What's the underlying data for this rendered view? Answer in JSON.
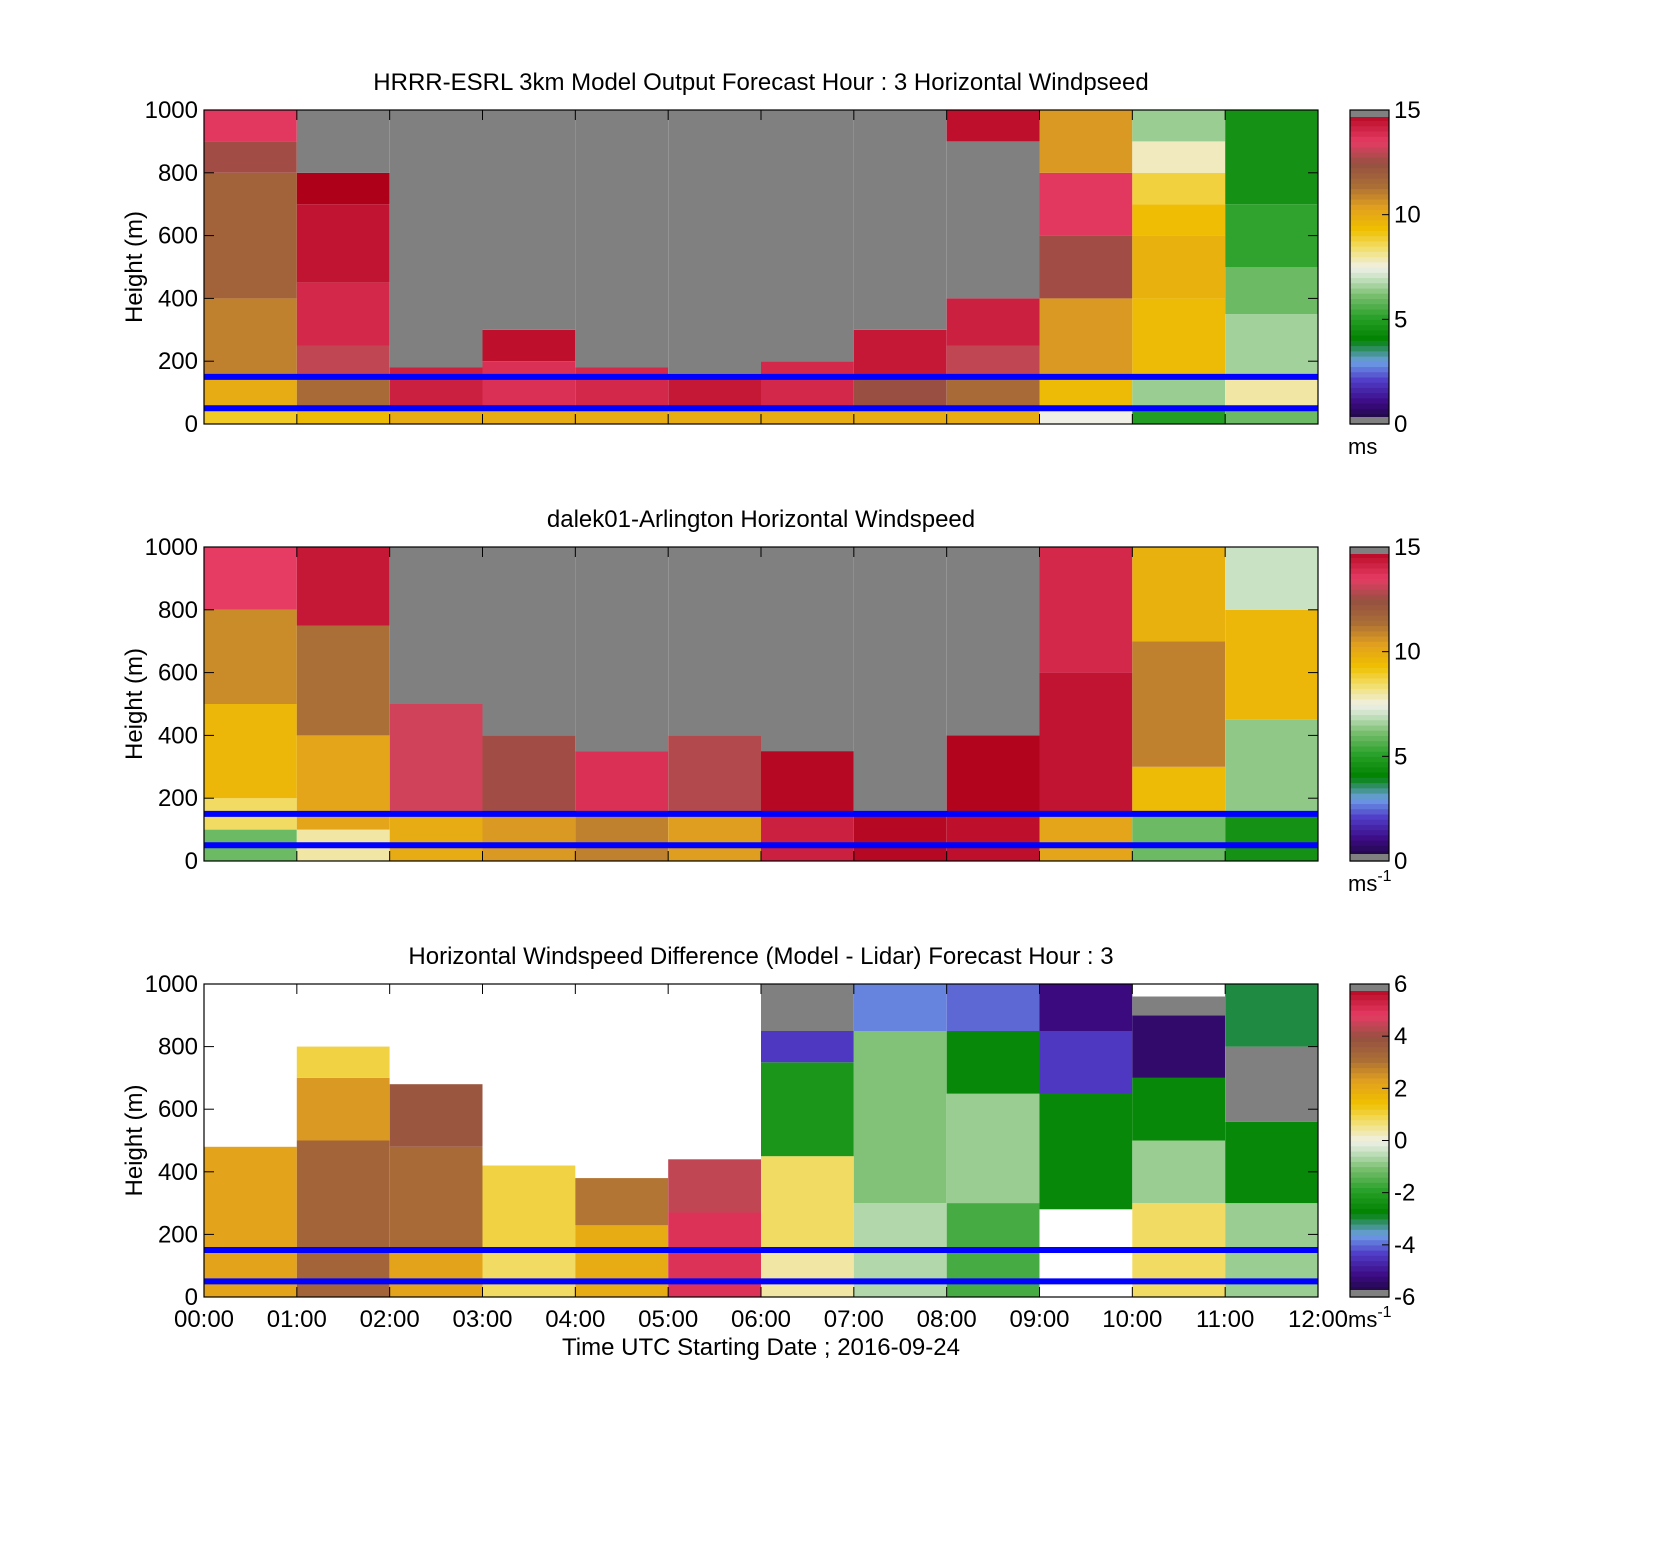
{
  "figure": {
    "xlabel": "Time UTC  Starting Date ; 2016-09-24",
    "x_ticks": [
      "00:00",
      "01:00",
      "02:00",
      "03:00",
      "04:00",
      "05:00",
      "06:00",
      "07:00",
      "08:00",
      "09:00",
      "10:00",
      "11:00",
      "12:00"
    ]
  },
  "colors": {
    "ref_line": "#0000ff",
    "missing": "#808080",
    "background": "#ffffff"
  },
  "chart_data": [
    {
      "type": "heatmap",
      "title": "HRRR-ESRL 3km Model Output   Forecast Hour : 3 Horizontal Windpseed",
      "ylabel": "Height (m)",
      "ylim": [
        0,
        1000
      ],
      "xlim_hours": [
        0,
        12
      ],
      "y_ticks": [
        "0",
        "200",
        "400",
        "600",
        "800",
        "1000"
      ],
      "colorbar": {
        "min": 0,
        "max": 15,
        "ticks": [
          "0",
          "5",
          "10",
          "15"
        ],
        "unit_main": "ms",
        "unit_sup": ""
      },
      "ref_lines_m": [
        150,
        50
      ],
      "columns": [
        {
          "t0": 0,
          "t1": 1,
          "bands": [
            {
              "y0": 0,
              "y1": 50,
              "v": 9
            },
            {
              "y0": 50,
              "y1": 150,
              "v": 10
            },
            {
              "y0": 150,
              "y1": 400,
              "v": 11
            },
            {
              "y0": 400,
              "y1": 800,
              "v": 11.8
            },
            {
              "y0": 800,
              "y1": 900,
              "v": 12.6
            },
            {
              "y0": 900,
              "y1": 1000,
              "v": 13.6
            }
          ]
        },
        {
          "t0": 1,
          "t1": 2,
          "bands": [
            {
              "y0": 0,
              "y1": 50,
              "v": 9.5
            },
            {
              "y0": 50,
              "y1": 150,
              "v": 11.5
            },
            {
              "y0": 150,
              "y1": 250,
              "v": 13
            },
            {
              "y0": 250,
              "y1": 450,
              "v": 14
            },
            {
              "y0": 450,
              "y1": 700,
              "v": 14.5
            },
            {
              "y0": 700,
              "y1": 800,
              "v": 15
            },
            {
              "y0": 800,
              "y1": 1000,
              "v": null
            }
          ]
        },
        {
          "t0": 2,
          "t1": 3,
          "bands": [
            {
              "y0": 0,
              "y1": 50,
              "v": 10
            },
            {
              "y0": 50,
              "y1": 180,
              "v": 14.2
            },
            {
              "y0": 180,
              "y1": 1000,
              "v": null
            }
          ]
        },
        {
          "t0": 3,
          "t1": 4,
          "bands": [
            {
              "y0": 0,
              "y1": 50,
              "v": 10
            },
            {
              "y0": 50,
              "y1": 200,
              "v": 13.8
            },
            {
              "y0": 200,
              "y1": 300,
              "v": 14.6
            },
            {
              "y0": 300,
              "y1": 1000,
              "v": null
            }
          ]
        },
        {
          "t0": 4,
          "t1": 5,
          "bands": [
            {
              "y0": 0,
              "y1": 50,
              "v": 10
            },
            {
              "y0": 50,
              "y1": 180,
              "v": 14
            },
            {
              "y0": 180,
              "y1": 1000,
              "v": null
            }
          ]
        },
        {
          "t0": 5,
          "t1": 6,
          "bands": [
            {
              "y0": 0,
              "y1": 50,
              "v": 10
            },
            {
              "y0": 50,
              "y1": 160,
              "v": 14.4
            },
            {
              "y0": 160,
              "y1": 1000,
              "v": null
            }
          ]
        },
        {
          "t0": 6,
          "t1": 7,
          "bands": [
            {
              "y0": 0,
              "y1": 50,
              "v": 10
            },
            {
              "y0": 50,
              "y1": 200,
              "v": 14
            },
            {
              "y0": 200,
              "y1": 1000,
              "v": null
            }
          ]
        },
        {
          "t0": 7,
          "t1": 8,
          "bands": [
            {
              "y0": 0,
              "y1": 50,
              "v": 10
            },
            {
              "y0": 50,
              "y1": 150,
              "v": 12.5
            },
            {
              "y0": 150,
              "y1": 300,
              "v": 14.4
            },
            {
              "y0": 300,
              "y1": 1000,
              "v": null
            }
          ]
        },
        {
          "t0": 8,
          "t1": 9,
          "bands": [
            {
              "y0": 0,
              "y1": 50,
              "v": 10
            },
            {
              "y0": 50,
              "y1": 150,
              "v": 11.5
            },
            {
              "y0": 150,
              "y1": 250,
              "v": 13
            },
            {
              "y0": 250,
              "y1": 400,
              "v": 14.2
            },
            {
              "y0": 400,
              "y1": 900,
              "v": null
            },
            {
              "y0": 900,
              "y1": 1000,
              "v": 14.6
            }
          ]
        },
        {
          "t0": 9,
          "t1": 10,
          "bands": [
            {
              "y0": 0,
              "y1": 50,
              "v": 7.5
            },
            {
              "y0": 50,
              "y1": 150,
              "v": 9.5
            },
            {
              "y0": 150,
              "y1": 400,
              "v": 10.5
            },
            {
              "y0": 400,
              "y1": 600,
              "v": 12.6
            },
            {
              "y0": 600,
              "y1": 800,
              "v": 13.6
            },
            {
              "y0": 800,
              "y1": 1000,
              "v": 10.5
            }
          ]
        },
        {
          "t0": 10,
          "t1": 11,
          "bands": [
            {
              "y0": 0,
              "y1": 50,
              "v": 5
            },
            {
              "y0": 50,
              "y1": 150,
              "v": 6.5
            },
            {
              "y0": 150,
              "y1": 400,
              "v": 9.5
            },
            {
              "y0": 400,
              "y1": 600,
              "v": 9.8
            },
            {
              "y0": 600,
              "y1": 700,
              "v": 9.4
            },
            {
              "y0": 700,
              "y1": 800,
              "v": 8.8
            },
            {
              "y0": 800,
              "y1": 900,
              "v": 7.8
            },
            {
              "y0": 900,
              "y1": 1000,
              "v": 6.5
            }
          ]
        },
        {
          "t0": 11,
          "t1": 12,
          "bands": [
            {
              "y0": 0,
              "y1": 50,
              "v": 6
            },
            {
              "y0": 50,
              "y1": 150,
              "v": 8
            },
            {
              "y0": 150,
              "y1": 350,
              "v": 6.6
            },
            {
              "y0": 350,
              "y1": 500,
              "v": 6
            },
            {
              "y0": 500,
              "y1": 700,
              "v": 5.2
            },
            {
              "y0": 700,
              "y1": 1000,
              "v": 4.6
            }
          ]
        }
      ]
    },
    {
      "type": "heatmap",
      "title": "dalek01-Arlington  Horizontal Windspeed",
      "ylabel": "Height (m)",
      "ylim": [
        0,
        1000
      ],
      "xlim_hours": [
        0,
        12
      ],
      "y_ticks": [
        "0",
        "200",
        "400",
        "600",
        "800",
        "1000"
      ],
      "colorbar": {
        "min": 0,
        "max": 15,
        "ticks": [
          "0",
          "5",
          "10",
          "15"
        ],
        "unit_main": "ms",
        "unit_sup": "-1"
      },
      "ref_lines_m": [
        150,
        50
      ],
      "columns": [
        {
          "t0": 0,
          "t1": 1,
          "bands": [
            {
              "y0": 0,
              "y1": 100,
              "v": 6
            },
            {
              "y0": 100,
              "y1": 200,
              "v": 8.5
            },
            {
              "y0": 200,
              "y1": 500,
              "v": 9.6
            },
            {
              "y0": 500,
              "y1": 800,
              "v": 10.8
            },
            {
              "y0": 800,
              "y1": 1000,
              "v": 13.5
            }
          ]
        },
        {
          "t0": 1,
          "t1": 2,
          "bands": [
            {
              "y0": 0,
              "y1": 100,
              "v": 8
            },
            {
              "y0": 100,
              "y1": 400,
              "v": 10.2
            },
            {
              "y0": 400,
              "y1": 750,
              "v": 11.4
            },
            {
              "y0": 750,
              "y1": 1000,
              "v": 14.4
            }
          ]
        },
        {
          "t0": 2,
          "t1": 3,
          "bands": [
            {
              "y0": 0,
              "y1": 150,
              "v": 10
            },
            {
              "y0": 150,
              "y1": 500,
              "v": 13.2
            },
            {
              "y0": 500,
              "y1": 1000,
              "v": null
            }
          ]
        },
        {
          "t0": 3,
          "t1": 4,
          "bands": [
            {
              "y0": 0,
              "y1": 150,
              "v": 10.5
            },
            {
              "y0": 150,
              "y1": 400,
              "v": 12.6
            },
            {
              "y0": 400,
              "y1": 1000,
              "v": null
            }
          ]
        },
        {
          "t0": 4,
          "t1": 5,
          "bands": [
            {
              "y0": 0,
              "y1": 150,
              "v": 11
            },
            {
              "y0": 150,
              "y1": 350,
              "v": 13.8
            },
            {
              "y0": 350,
              "y1": 1000,
              "v": null
            }
          ]
        },
        {
          "t0": 5,
          "t1": 6,
          "bands": [
            {
              "y0": 0,
              "y1": 150,
              "v": 10.4
            },
            {
              "y0": 150,
              "y1": 400,
              "v": 12.8
            },
            {
              "y0": 400,
              "y1": 1000,
              "v": null
            }
          ]
        },
        {
          "t0": 6,
          "t1": 7,
          "bands": [
            {
              "y0": 0,
              "y1": 150,
              "v": 14.2
            },
            {
              "y0": 150,
              "y1": 350,
              "v": 14.8
            },
            {
              "y0": 350,
              "y1": 1000,
              "v": null
            }
          ]
        },
        {
          "t0": 7,
          "t1": 8,
          "bands": [
            {
              "y0": 0,
              "y1": 150,
              "v": 14.8
            },
            {
              "y0": 150,
              "y1": 1000,
              "v": null
            }
          ]
        },
        {
          "t0": 8,
          "t1": 9,
          "bands": [
            {
              "y0": 0,
              "y1": 150,
              "v": 14.6
            },
            {
              "y0": 150,
              "y1": 400,
              "v": 14.9
            },
            {
              "y0": 400,
              "y1": 1000,
              "v": null
            }
          ]
        },
        {
          "t0": 9,
          "t1": 10,
          "bands": [
            {
              "y0": 0,
              "y1": 150,
              "v": 10.2
            },
            {
              "y0": 150,
              "y1": 600,
              "v": 14.5
            },
            {
              "y0": 600,
              "y1": 1000,
              "v": 14
            }
          ]
        },
        {
          "t0": 10,
          "t1": 11,
          "bands": [
            {
              "y0": 0,
              "y1": 150,
              "v": 6
            },
            {
              "y0": 150,
              "y1": 300,
              "v": 9.5
            },
            {
              "y0": 300,
              "y1": 700,
              "v": 11
            },
            {
              "y0": 700,
              "y1": 1000,
              "v": 9.8
            }
          ]
        },
        {
          "t0": 11,
          "t1": 12,
          "bands": [
            {
              "y0": 0,
              "y1": 150,
              "v": 4.6
            },
            {
              "y0": 150,
              "y1": 450,
              "v": 6.4
            },
            {
              "y0": 450,
              "y1": 800,
              "v": 9.6
            },
            {
              "y0": 800,
              "y1": 1000,
              "v": 7
            }
          ]
        }
      ]
    },
    {
      "type": "heatmap",
      "title": "Horizontal Windspeed Difference (Model - Lidar) Forecast Hour : 3",
      "ylabel": "Height (m)",
      "ylim": [
        0,
        1000
      ],
      "xlim_hours": [
        0,
        12
      ],
      "y_ticks": [
        "0",
        "200",
        "400",
        "600",
        "800",
        "1000"
      ],
      "colorbar": {
        "min": -6,
        "max": 6,
        "ticks": [
          "-6",
          "-4",
          "-2",
          "0",
          "2",
          "4",
          "6"
        ],
        "unit_main": "ms",
        "unit_sup": "-1"
      },
      "ref_lines_m": [
        150,
        50
      ],
      "columns": [
        {
          "t0": 0,
          "t1": 1,
          "bands": [
            {
              "y0": 0,
              "y1": 480,
              "v": 2.2
            },
            {
              "y0": 480,
              "y1": 1000,
              "v": "none"
            }
          ]
        },
        {
          "t0": 1,
          "t1": 2,
          "bands": [
            {
              "y0": 0,
              "y1": 500,
              "v": 3.4
            },
            {
              "y0": 500,
              "y1": 700,
              "v": 2.4
            },
            {
              "y0": 700,
              "y1": 800,
              "v": 1
            }
          ]
        },
        {
          "t0": 2,
          "t1": 3,
          "bands": [
            {
              "y0": 0,
              "y1": 150,
              "v": 2.2
            },
            {
              "y0": 150,
              "y1": 480,
              "v": 3.2
            },
            {
              "y0": 480,
              "y1": 680,
              "v": 3.8
            }
          ]
        },
        {
          "t0": 3,
          "t1": 4,
          "bands": [
            {
              "y0": 0,
              "y1": 150,
              "v": 0.8
            },
            {
              "y0": 150,
              "y1": 420,
              "v": 1
            }
          ]
        },
        {
          "t0": 4,
          "t1": 5,
          "bands": [
            {
              "y0": 0,
              "y1": 230,
              "v": 2
            },
            {
              "y0": 230,
              "y1": 380,
              "v": 3
            }
          ]
        },
        {
          "t0": 5,
          "t1": 6,
          "bands": [
            {
              "y0": 0,
              "y1": 270,
              "v": 5
            },
            {
              "y0": 270,
              "y1": 440,
              "v": 4.4
            }
          ]
        },
        {
          "t0": 6,
          "t1": 7,
          "bands": [
            {
              "y0": 0,
              "y1": 150,
              "v": 0.4
            },
            {
              "y0": 150,
              "y1": 450,
              "v": 0.8
            },
            {
              "y0": 450,
              "y1": 750,
              "v": -2.2
            },
            {
              "y0": 750,
              "y1": 850,
              "v": -4.4
            },
            {
              "y0": 850,
              "y1": 1000,
              "v": null
            }
          ]
        },
        {
          "t0": 7,
          "t1": 8,
          "bands": [
            {
              "y0": 0,
              "y1": 300,
              "v": -0.6
            },
            {
              "y0": 300,
              "y1": 850,
              "v": -1
            },
            {
              "y0": 850,
              "y1": 1000,
              "v": -3.8
            }
          ]
        },
        {
          "t0": 8,
          "t1": 9,
          "bands": [
            {
              "y0": 0,
              "y1": 300,
              "v": -1.6
            },
            {
              "y0": 300,
              "y1": 650,
              "v": -0.8
            },
            {
              "y0": 650,
              "y1": 850,
              "v": -2.6
            },
            {
              "y0": 850,
              "y1": 1000,
              "v": -4
            }
          ]
        },
        {
          "t0": 9,
          "t1": 10,
          "bands": [
            {
              "y0": 0,
              "y1": 280,
              "v": "none"
            },
            {
              "y0": 280,
              "y1": 650,
              "v": -2.6
            },
            {
              "y0": 650,
              "y1": 850,
              "v": -4.4
            },
            {
              "y0": 850,
              "y1": 1000,
              "v": -5.2
            }
          ]
        },
        {
          "t0": 10,
          "t1": 11,
          "bands": [
            {
              "y0": 0,
              "y1": 300,
              "v": 0.8
            },
            {
              "y0": 300,
              "y1": 500,
              "v": -0.8
            },
            {
              "y0": 500,
              "y1": 700,
              "v": -2.6
            },
            {
              "y0": 700,
              "y1": 900,
              "v": -5.4
            },
            {
              "y0": 900,
              "y1": 960,
              "v": null
            }
          ]
        },
        {
          "t0": 11,
          "t1": 12,
          "bands": [
            {
              "y0": 0,
              "y1": 300,
              "v": -0.8
            },
            {
              "y0": 300,
              "y1": 560,
              "v": -2.6
            },
            {
              "y0": 560,
              "y1": 800,
              "v": null
            },
            {
              "y0": 800,
              "y1": 1000,
              "v": -3
            }
          ]
        }
      ]
    }
  ]
}
